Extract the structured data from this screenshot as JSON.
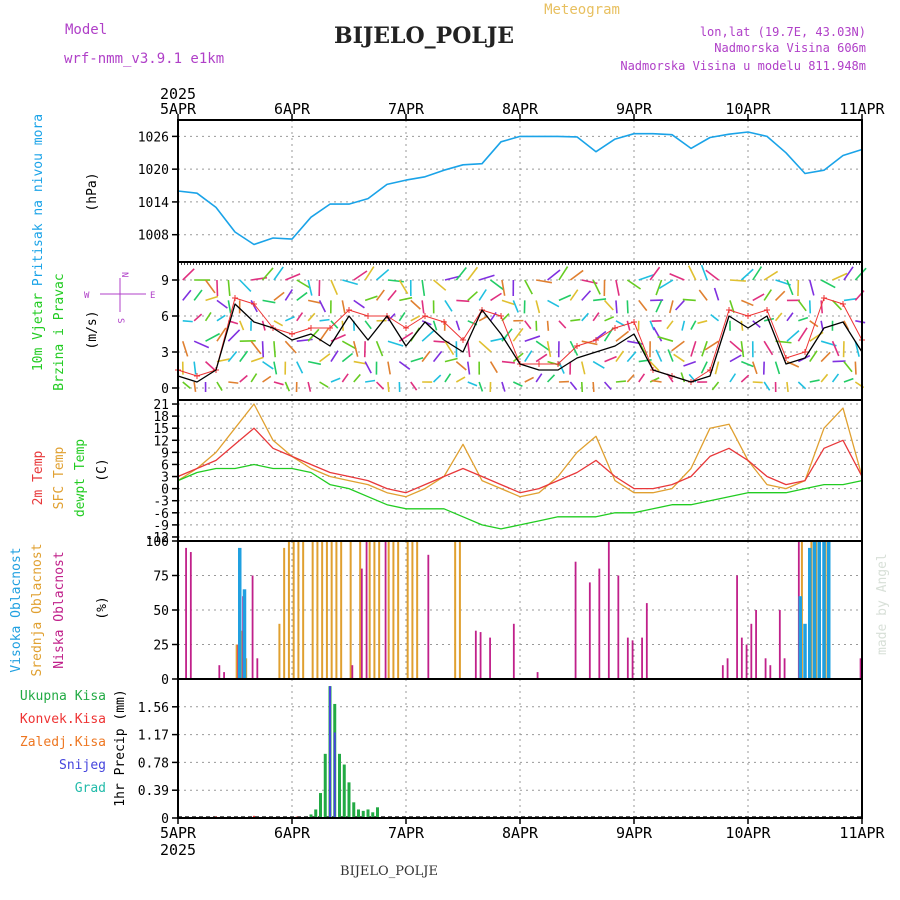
{
  "header": {
    "model_label": "Model",
    "model_name": "wrf-nmm_v3.9.1 e1km",
    "station": "BIJELO_POLJE",
    "chart_kind": "Meteogram",
    "coords": "lon,lat (19.7E, 43.03N)",
    "elevation": "Nadmorska Visina 606m",
    "model_elevation": "Nadmorska Visina u modelu 811.948m",
    "credit": "made by Angel",
    "footer_station": "BIJELO_POLJE"
  },
  "time_axis": {
    "year": "2025",
    "ticks": [
      "5APR",
      "6APR",
      "7APR",
      "8APR",
      "9APR",
      "10APR",
      "11APR"
    ]
  },
  "panel_labels": {
    "pressure": [
      "Pritisak na nivou mora"
    ],
    "pressure_unit": "(hPa)",
    "wind": [
      "10m Vjetar",
      "Brzina i Pravac"
    ],
    "wind_unit": "(m/s)",
    "wind_compass": [
      "N",
      "S",
      "W",
      "E"
    ],
    "temp": [
      "2m Temp",
      "SFC Temp",
      "dewpt Temp"
    ],
    "temp_unit": "(C)",
    "cloud": [
      "Visoka Oblacnost",
      "Srednja Oblacnost",
      "Niska Oblacnost"
    ],
    "cloud_unit": "(%)",
    "precip": [
      "Ukupna Kisa",
      "Konvek.Kisa",
      "Zaledj.Kisa",
      "Snijeg",
      "Grad"
    ],
    "precip_unit": "1hr Precip (mm)"
  },
  "colors": {
    "pressure": "#1aa3e8",
    "wind_speed": "#000000",
    "wind_gust": "#ee3333",
    "t2m": "#e8383a",
    "tsfc": "#e0a030",
    "dewpt": "#22cc22",
    "cloud_high": "#20a0e0",
    "cloud_mid": "#e0a030",
    "cloud_low": "#c0208a",
    "precip_total": "#22aa44",
    "precip_conv": "#ee3333",
    "precip_frz": "#ee7722",
    "precip_snow": "#4444dd",
    "precip_grad": "#22bbaa",
    "labels_purple": "#b040c8",
    "meteogram_title": "#e8c060"
  },
  "chart_data": [
    {
      "type": "line",
      "panel": "pressure",
      "x_unit": "hours from 5APR 00",
      "ylim": [
        1003,
        1029
      ],
      "yticks": [
        1008,
        1014,
        1020,
        1026
      ],
      "x": [
        0,
        4,
        8,
        12,
        16,
        20,
        24,
        28,
        32,
        36,
        40,
        44,
        48,
        52,
        56,
        60,
        64,
        68,
        72,
        76,
        80,
        84,
        88,
        92,
        96,
        100,
        104,
        108,
        112,
        116,
        120,
        124,
        128,
        132,
        136,
        140,
        144
      ],
      "series": [
        {
          "values": [
            1016,
            1015.6,
            1013,
            1008.5,
            1006.2,
            1007.4,
            1007.2,
            1011.2,
            1013.6,
            1013.6,
            1014.6,
            1017.2,
            1018,
            1018.6,
            1019.8,
            1020.8,
            1021,
            1025,
            1026,
            1026,
            1026,
            1025.9,
            1023.2,
            1025.5,
            1026.5,
            1026.5,
            1026.3,
            1023.8,
            1025.8,
            1026.4,
            1026.8,
            1026,
            1023,
            1019.2,
            1019.8,
            1022.5,
            1023.6
          ]
        }
      ]
    },
    {
      "type": "line",
      "panel": "wind",
      "x_unit": "hours from 5APR 00",
      "ylim": [
        -1,
        10.5
      ],
      "yticks": [
        0,
        3,
        6,
        9
      ],
      "x": [
        0,
        4,
        8,
        12,
        16,
        20,
        24,
        28,
        32,
        36,
        40,
        44,
        48,
        52,
        56,
        60,
        64,
        68,
        72,
        76,
        80,
        84,
        88,
        92,
        96,
        100,
        104,
        108,
        112,
        116,
        120,
        124,
        128,
        132,
        136,
        140,
        144
      ],
      "series": [
        {
          "values": [
            1,
            0.5,
            1.5,
            7,
            5.5,
            5,
            4,
            4.5,
            3.5,
            6,
            4,
            6,
            3.5,
            5.5,
            4,
            3,
            6.5,
            4.5,
            2,
            1.5,
            1.5,
            2.5,
            3,
            3.5,
            4.5,
            1.5,
            1,
            0.5,
            1,
            6,
            5,
            6,
            2,
            2.5,
            5,
            5.5,
            3
          ]
        },
        {
          "values": [
            1.5,
            1,
            1.5,
            7.5,
            7,
            5,
            4.5,
            5,
            5,
            6.5,
            6,
            6,
            5,
            6,
            5.5,
            4,
            6.5,
            6,
            2,
            2,
            2,
            3.5,
            4,
            5,
            5.5,
            1.5,
            1,
            0.5,
            1.5,
            6.5,
            6,
            6.5,
            2.5,
            3,
            7.5,
            7,
            4
          ]
        }
      ]
    },
    {
      "type": "line",
      "panel": "temperature",
      "x_unit": "hours from 5APR 00",
      "ylim": [
        -13,
        22
      ],
      "yticks": [
        -12,
        -9,
        -6,
        -3,
        0,
        3,
        6,
        9,
        12,
        15,
        18,
        21
      ],
      "x": [
        0,
        4,
        8,
        12,
        16,
        20,
        24,
        28,
        32,
        36,
        40,
        44,
        48,
        52,
        56,
        60,
        64,
        68,
        72,
        76,
        80,
        84,
        88,
        92,
        96,
        100,
        104,
        108,
        112,
        116,
        120,
        124,
        128,
        132,
        136,
        140,
        144
      ],
      "series": [
        {
          "values": [
            3,
            5,
            7,
            11,
            15,
            10,
            8,
            6,
            4,
            3,
            2,
            0,
            -1,
            1,
            3,
            5,
            3,
            1,
            -1,
            0,
            2,
            4,
            7,
            3,
            0,
            0,
            1,
            3,
            8,
            10,
            7,
            3,
            1,
            2,
            10,
            12,
            3
          ]
        },
        {
          "values": [
            2,
            5,
            9,
            15,
            21,
            12,
            8,
            5,
            3,
            2,
            1,
            -1,
            -2,
            0,
            3,
            11,
            2,
            0,
            -2,
            -1,
            3,
            9,
            13,
            2,
            -1,
            -1,
            0,
            5,
            15,
            16,
            7,
            1,
            0,
            2,
            15,
            20,
            3
          ]
        },
        {
          "values": [
            2,
            4,
            5,
            5,
            6,
            5,
            5,
            4,
            1,
            0,
            -2,
            -4,
            -5,
            -5,
            -5,
            -7,
            -9,
            -10,
            -9,
            -8,
            -7,
            -7,
            -7,
            -6,
            -6,
            -5,
            -4,
            -4,
            -3,
            -2,
            -1,
            -1,
            -1,
            0,
            1,
            1,
            2
          ]
        }
      ]
    },
    {
      "type": "bar",
      "panel": "cloud",
      "x_unit": "hours from 5APR 00",
      "ylim": [
        0,
        100
      ],
      "yticks": [
        0,
        25,
        50,
        75,
        100
      ],
      "series": [
        {
          "values": [
            [
              13,
              95
            ],
            [
              14,
              65
            ],
            [
              131,
              60
            ],
            [
              132,
              40
            ],
            [
              133,
              95
            ],
            [
              134,
              100
            ],
            [
              135,
              100
            ],
            [
              136,
              100
            ],
            [
              137,
              100
            ]
          ]
        },
        {
          "values": [
            [
              12,
              25
            ],
            [
              13,
              35
            ],
            [
              14,
              15
            ],
            [
              21,
              40
            ],
            [
              22,
              95
            ],
            [
              23,
              100
            ],
            [
              24,
              100
            ],
            [
              25,
              100
            ],
            [
              26,
              100
            ],
            [
              28,
              100
            ],
            [
              29,
              100
            ],
            [
              30,
              100
            ],
            [
              31,
              100
            ],
            [
              32,
              100
            ],
            [
              33,
              100
            ],
            [
              34,
              100
            ],
            [
              36,
              100
            ],
            [
              38,
              100
            ],
            [
              40,
              100
            ],
            [
              41,
              100
            ],
            [
              42,
              100
            ],
            [
              44,
              100
            ],
            [
              45,
              100
            ],
            [
              46,
              100
            ],
            [
              48,
              100
            ],
            [
              49,
              100
            ],
            [
              50,
              100
            ],
            [
              58,
              100
            ],
            [
              59,
              100
            ],
            [
              131,
              100
            ],
            [
              133,
              100
            ],
            [
              134,
              100
            ],
            [
              136,
              100
            ]
          ]
        },
        {
          "values": [
            [
              1,
              95
            ],
            [
              2,
              92
            ],
            [
              8,
              10
            ],
            [
              9,
              5
            ],
            [
              12,
              25
            ],
            [
              13,
              60
            ],
            [
              15,
              75
            ],
            [
              16,
              15
            ],
            [
              36,
              10
            ],
            [
              38,
              80
            ],
            [
              39,
              100
            ],
            [
              43,
              100
            ],
            [
              52,
              90
            ],
            [
              62,
              35
            ],
            [
              63,
              34
            ],
            [
              65,
              30
            ],
            [
              70,
              40
            ],
            [
              75,
              5
            ],
            [
              83,
              85
            ],
            [
              86,
              70
            ],
            [
              88,
              80
            ],
            [
              90,
              100
            ],
            [
              92,
              75
            ],
            [
              94,
              30
            ],
            [
              95,
              28
            ],
            [
              97,
              30
            ],
            [
              98,
              55
            ],
            [
              114,
              10
            ],
            [
              115,
              15
            ],
            [
              117,
              75
            ],
            [
              118,
              30
            ],
            [
              119,
              25
            ],
            [
              120,
              40
            ],
            [
              121,
              50
            ],
            [
              123,
              15
            ],
            [
              124,
              10
            ],
            [
              126,
              50
            ],
            [
              127,
              15
            ],
            [
              130,
              100
            ],
            [
              143,
              15
            ]
          ]
        }
      ]
    },
    {
      "type": "bar",
      "panel": "precipitation",
      "x_unit": "hours from 5APR 00",
      "ylim": [
        0,
        1.95
      ],
      "yticks": [
        0,
        0.39,
        0.78,
        1.17,
        1.56
      ],
      "series": [
        {
          "values": [
            [
              28,
              0.05
            ],
            [
              29,
              0.12
            ],
            [
              30,
              0.35
            ],
            [
              31,
              0.9
            ],
            [
              32,
              1.85
            ],
            [
              33,
              1.6
            ],
            [
              34,
              0.9
            ],
            [
              35,
              0.75
            ],
            [
              36,
              0.5
            ],
            [
              37,
              0.22
            ],
            [
              38,
              0.12
            ],
            [
              39,
              0.1
            ],
            [
              40,
              0.12
            ],
            [
              41,
              0.08
            ],
            [
              42,
              0.15
            ]
          ]
        },
        {
          "values": [
            [
              8,
              0.02
            ],
            [
              16,
              0.03
            ],
            [
              25,
              0.02
            ]
          ]
        },
        {
          "values": [
            [
              32,
              1.85
            ],
            [
              33,
              1.2
            ]
          ]
        }
      ]
    }
  ]
}
